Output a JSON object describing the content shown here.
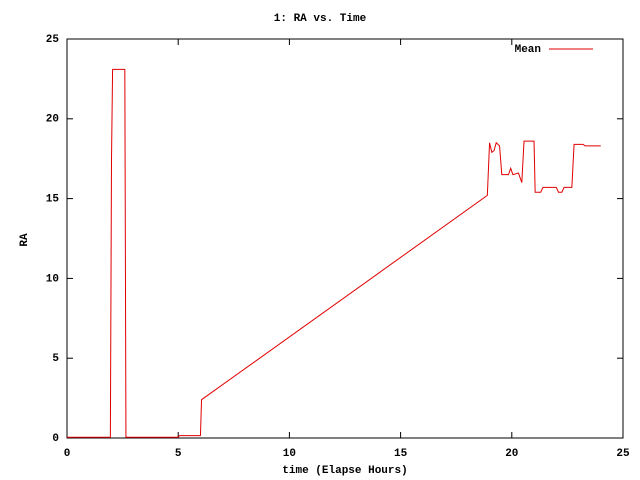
{
  "chart_data": {
    "type": "line",
    "title": "1: RA vs. Time",
    "x_label": "time (Elapse Hours)",
    "y_label": "RA",
    "x": [
      0,
      1.95,
      2.0,
      2.05,
      2.6,
      2.65,
      5.0,
      5.05,
      6.0,
      6.05,
      18.9,
      19.0,
      19.1,
      19.2,
      19.3,
      19.45,
      19.55,
      19.85,
      19.95,
      20.05,
      20.3,
      20.45,
      20.55,
      21.0,
      21.05,
      21.3,
      21.4,
      22.0,
      22.1,
      22.25,
      22.35,
      22.7,
      22.8,
      23.2,
      23.3,
      24.0
    ],
    "series": [
      {
        "name": "Mean",
        "color": "#e00000",
        "values": [
          0.05,
          0.05,
          17.3,
          23.1,
          23.1,
          0.05,
          0.05,
          0.15,
          0.15,
          2.4,
          15.2,
          18.5,
          17.9,
          18.0,
          18.5,
          18.3,
          16.5,
          16.5,
          16.9,
          16.5,
          16.6,
          16.0,
          18.6,
          18.6,
          15.4,
          15.4,
          15.7,
          15.7,
          15.4,
          15.4,
          15.7,
          15.7,
          18.4,
          18.4,
          18.3,
          18.3
        ]
      }
    ],
    "xlim": [
      0,
      25
    ],
    "xticks": [
      0,
      5,
      10,
      15,
      20,
      25
    ],
    "ylim": [
      0,
      25
    ],
    "yticks": [
      0,
      5,
      10,
      15,
      20,
      25
    ],
    "legend": "top right"
  }
}
